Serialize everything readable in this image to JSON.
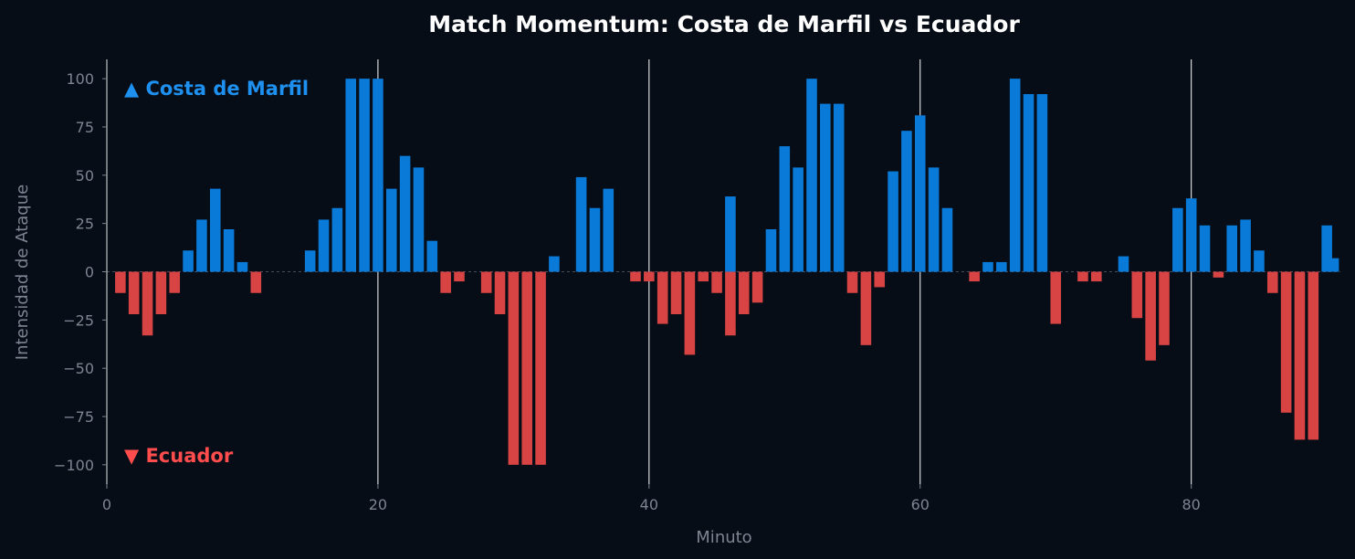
{
  "chart_data": {
    "type": "bar",
    "title": "Match Momentum: Costa de Marfil vs Ecuador",
    "xlabel": "Minuto",
    "ylabel": "Intensidad de Ataque",
    "xlim": [
      0,
      91
    ],
    "ylim": [
      -110,
      110
    ],
    "xticks": [
      0,
      20,
      40,
      60,
      80
    ],
    "yticks": [
      -100,
      -75,
      -50,
      -25,
      0,
      25,
      50,
      75,
      100
    ],
    "tick_labels": {
      "x": [
        "0",
        "20",
        "40",
        "60",
        "80"
      ],
      "y": [
        "−100",
        "−75",
        "−50",
        "−25",
        "0",
        "25",
        "50",
        "75",
        "100"
      ]
    },
    "vlines": [
      20,
      40,
      60,
      80
    ],
    "grid": false,
    "positive_label": "▲ Costa de Marfil",
    "negative_label": "▼ Ecuador",
    "colors": {
      "positive": "#0a7ad8",
      "negative": "#d84444",
      "positive_label": "#1e90f0",
      "negative_label": "#ff4d4d",
      "background": "#070d17",
      "vline": "#ffffff",
      "axis_text": "#7d8593"
    },
    "series": [
      {
        "minute": 1,
        "value": -11
      },
      {
        "minute": 2,
        "value": -22
      },
      {
        "minute": 3,
        "value": -33
      },
      {
        "minute": 4,
        "value": -22
      },
      {
        "minute": 5,
        "value": -11
      },
      {
        "minute": 6,
        "value": 11
      },
      {
        "minute": 7,
        "value": 27
      },
      {
        "minute": 8,
        "value": 43
      },
      {
        "minute": 9,
        "value": 22
      },
      {
        "minute": 10,
        "value": 5
      },
      {
        "minute": 11,
        "value": -11
      },
      {
        "minute": 15,
        "value": 11
      },
      {
        "minute": 16,
        "value": 27
      },
      {
        "minute": 17,
        "value": 33
      },
      {
        "minute": 18,
        "value": 100
      },
      {
        "minute": 19,
        "value": 100
      },
      {
        "minute": 20,
        "value": 100
      },
      {
        "minute": 21,
        "value": 43
      },
      {
        "minute": 22,
        "value": 60
      },
      {
        "minute": 23,
        "value": 54
      },
      {
        "minute": 24,
        "value": 16
      },
      {
        "minute": 25,
        "value": -11
      },
      {
        "minute": 26,
        "value": -5
      },
      {
        "minute": 28,
        "value": -11
      },
      {
        "minute": 29,
        "value": -22
      },
      {
        "minute": 30,
        "value": -100
      },
      {
        "minute": 31,
        "value": -100
      },
      {
        "minute": 32,
        "value": -100
      },
      {
        "minute": 33,
        "value": 8
      },
      {
        "minute": 35,
        "value": 49
      },
      {
        "minute": 36,
        "value": 33
      },
      {
        "minute": 37,
        "value": 43
      },
      {
        "minute": 39,
        "value": -5
      },
      {
        "minute": 40,
        "value": -5
      },
      {
        "minute": 41,
        "value": -27
      },
      {
        "minute": 42,
        "value": -22
      },
      {
        "minute": 43,
        "value": -43
      },
      {
        "minute": 44,
        "value": -5
      },
      {
        "minute": 45,
        "value": -11
      },
      {
        "minute": 46,
        "value": 39
      },
      {
        "minute": 46,
        "value": -33
      },
      {
        "minute": 47,
        "value": -22
      },
      {
        "minute": 48,
        "value": -16
      },
      {
        "minute": 49,
        "value": 22
      },
      {
        "minute": 50,
        "value": 65
      },
      {
        "minute": 51,
        "value": 54
      },
      {
        "minute": 52,
        "value": 100
      },
      {
        "minute": 53,
        "value": 87
      },
      {
        "minute": 54,
        "value": 87
      },
      {
        "minute": 55,
        "value": -11
      },
      {
        "minute": 56,
        "value": -38
      },
      {
        "minute": 57,
        "value": -8
      },
      {
        "minute": 58,
        "value": 52
      },
      {
        "minute": 59,
        "value": 73
      },
      {
        "minute": 60,
        "value": 81
      },
      {
        "minute": 61,
        "value": 54
      },
      {
        "minute": 62,
        "value": 33
      },
      {
        "minute": 64,
        "value": -5
      },
      {
        "minute": 65,
        "value": 5
      },
      {
        "minute": 66,
        "value": 5
      },
      {
        "minute": 67,
        "value": 100
      },
      {
        "minute": 68,
        "value": 92
      },
      {
        "minute": 69,
        "value": 92
      },
      {
        "minute": 70,
        "value": -27
      },
      {
        "minute": 72,
        "value": -5
      },
      {
        "minute": 73,
        "value": -5
      },
      {
        "minute": 75,
        "value": 8
      },
      {
        "minute": 76,
        "value": -24
      },
      {
        "minute": 77,
        "value": -46
      },
      {
        "minute": 78,
        "value": -38
      },
      {
        "minute": 79,
        "value": 33
      },
      {
        "minute": 80,
        "value": 38
      },
      {
        "minute": 81,
        "value": 24
      },
      {
        "minute": 82,
        "value": -3
      },
      {
        "minute": 83,
        "value": 24
      },
      {
        "minute": 84,
        "value": 27
      },
      {
        "minute": 85,
        "value": 11
      },
      {
        "minute": 86,
        "value": -11
      },
      {
        "minute": 87,
        "value": -73
      },
      {
        "minute": 88,
        "value": -87
      },
      {
        "minute": 89,
        "value": -87
      },
      {
        "minute": 90,
        "value": 24
      },
      {
        "minute": 90.5,
        "value": 7
      }
    ]
  }
}
